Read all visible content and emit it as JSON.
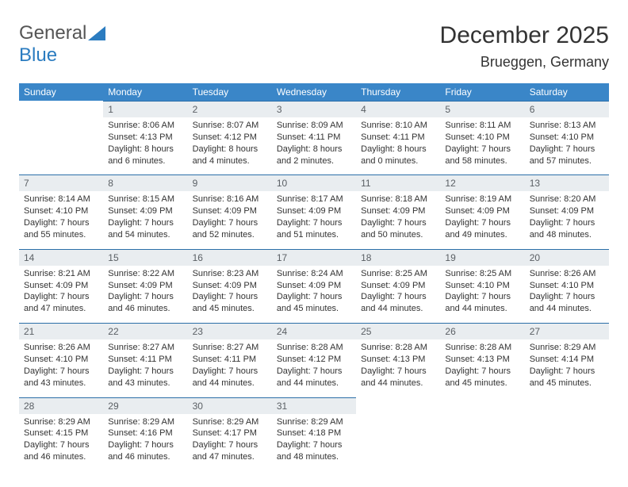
{
  "brand": {
    "text1": "General",
    "text2": "Blue"
  },
  "title": {
    "month": "December 2025",
    "location": "Brueggen, Germany"
  },
  "styling": {
    "header_bg": "#3a86c8",
    "header_fg": "#ffffff",
    "daynum_bg": "#e9edf0",
    "daynum_fg": "#5a5f64",
    "divider": "#2b6fa8",
    "body_font_size": 11,
    "header_font_size": 12,
    "month_font_size": 30,
    "location_font_size": 18
  },
  "weekdays": [
    "Sunday",
    "Monday",
    "Tuesday",
    "Wednesday",
    "Thursday",
    "Friday",
    "Saturday"
  ],
  "weeks": [
    [
      null,
      {
        "d": "1",
        "sr": "Sunrise: 8:06 AM",
        "ss": "Sunset: 4:13 PM",
        "dl1": "Daylight: 8 hours",
        "dl2": "and 6 minutes."
      },
      {
        "d": "2",
        "sr": "Sunrise: 8:07 AM",
        "ss": "Sunset: 4:12 PM",
        "dl1": "Daylight: 8 hours",
        "dl2": "and 4 minutes."
      },
      {
        "d": "3",
        "sr": "Sunrise: 8:09 AM",
        "ss": "Sunset: 4:11 PM",
        "dl1": "Daylight: 8 hours",
        "dl2": "and 2 minutes."
      },
      {
        "d": "4",
        "sr": "Sunrise: 8:10 AM",
        "ss": "Sunset: 4:11 PM",
        "dl1": "Daylight: 8 hours",
        "dl2": "and 0 minutes."
      },
      {
        "d": "5",
        "sr": "Sunrise: 8:11 AM",
        "ss": "Sunset: 4:10 PM",
        "dl1": "Daylight: 7 hours",
        "dl2": "and 58 minutes."
      },
      {
        "d": "6",
        "sr": "Sunrise: 8:13 AM",
        "ss": "Sunset: 4:10 PM",
        "dl1": "Daylight: 7 hours",
        "dl2": "and 57 minutes."
      }
    ],
    [
      {
        "d": "7",
        "sr": "Sunrise: 8:14 AM",
        "ss": "Sunset: 4:10 PM",
        "dl1": "Daylight: 7 hours",
        "dl2": "and 55 minutes."
      },
      {
        "d": "8",
        "sr": "Sunrise: 8:15 AM",
        "ss": "Sunset: 4:09 PM",
        "dl1": "Daylight: 7 hours",
        "dl2": "and 54 minutes."
      },
      {
        "d": "9",
        "sr": "Sunrise: 8:16 AM",
        "ss": "Sunset: 4:09 PM",
        "dl1": "Daylight: 7 hours",
        "dl2": "and 52 minutes."
      },
      {
        "d": "10",
        "sr": "Sunrise: 8:17 AM",
        "ss": "Sunset: 4:09 PM",
        "dl1": "Daylight: 7 hours",
        "dl2": "and 51 minutes."
      },
      {
        "d": "11",
        "sr": "Sunrise: 8:18 AM",
        "ss": "Sunset: 4:09 PM",
        "dl1": "Daylight: 7 hours",
        "dl2": "and 50 minutes."
      },
      {
        "d": "12",
        "sr": "Sunrise: 8:19 AM",
        "ss": "Sunset: 4:09 PM",
        "dl1": "Daylight: 7 hours",
        "dl2": "and 49 minutes."
      },
      {
        "d": "13",
        "sr": "Sunrise: 8:20 AM",
        "ss": "Sunset: 4:09 PM",
        "dl1": "Daylight: 7 hours",
        "dl2": "and 48 minutes."
      }
    ],
    [
      {
        "d": "14",
        "sr": "Sunrise: 8:21 AM",
        "ss": "Sunset: 4:09 PM",
        "dl1": "Daylight: 7 hours",
        "dl2": "and 47 minutes."
      },
      {
        "d": "15",
        "sr": "Sunrise: 8:22 AM",
        "ss": "Sunset: 4:09 PM",
        "dl1": "Daylight: 7 hours",
        "dl2": "and 46 minutes."
      },
      {
        "d": "16",
        "sr": "Sunrise: 8:23 AM",
        "ss": "Sunset: 4:09 PM",
        "dl1": "Daylight: 7 hours",
        "dl2": "and 45 minutes."
      },
      {
        "d": "17",
        "sr": "Sunrise: 8:24 AM",
        "ss": "Sunset: 4:09 PM",
        "dl1": "Daylight: 7 hours",
        "dl2": "and 45 minutes."
      },
      {
        "d": "18",
        "sr": "Sunrise: 8:25 AM",
        "ss": "Sunset: 4:09 PM",
        "dl1": "Daylight: 7 hours",
        "dl2": "and 44 minutes."
      },
      {
        "d": "19",
        "sr": "Sunrise: 8:25 AM",
        "ss": "Sunset: 4:10 PM",
        "dl1": "Daylight: 7 hours",
        "dl2": "and 44 minutes."
      },
      {
        "d": "20",
        "sr": "Sunrise: 8:26 AM",
        "ss": "Sunset: 4:10 PM",
        "dl1": "Daylight: 7 hours",
        "dl2": "and 44 minutes."
      }
    ],
    [
      {
        "d": "21",
        "sr": "Sunrise: 8:26 AM",
        "ss": "Sunset: 4:10 PM",
        "dl1": "Daylight: 7 hours",
        "dl2": "and 43 minutes."
      },
      {
        "d": "22",
        "sr": "Sunrise: 8:27 AM",
        "ss": "Sunset: 4:11 PM",
        "dl1": "Daylight: 7 hours",
        "dl2": "and 43 minutes."
      },
      {
        "d": "23",
        "sr": "Sunrise: 8:27 AM",
        "ss": "Sunset: 4:11 PM",
        "dl1": "Daylight: 7 hours",
        "dl2": "and 44 minutes."
      },
      {
        "d": "24",
        "sr": "Sunrise: 8:28 AM",
        "ss": "Sunset: 4:12 PM",
        "dl1": "Daylight: 7 hours",
        "dl2": "and 44 minutes."
      },
      {
        "d": "25",
        "sr": "Sunrise: 8:28 AM",
        "ss": "Sunset: 4:13 PM",
        "dl1": "Daylight: 7 hours",
        "dl2": "and 44 minutes."
      },
      {
        "d": "26",
        "sr": "Sunrise: 8:28 AM",
        "ss": "Sunset: 4:13 PM",
        "dl1": "Daylight: 7 hours",
        "dl2": "and 45 minutes."
      },
      {
        "d": "27",
        "sr": "Sunrise: 8:29 AM",
        "ss": "Sunset: 4:14 PM",
        "dl1": "Daylight: 7 hours",
        "dl2": "and 45 minutes."
      }
    ],
    [
      {
        "d": "28",
        "sr": "Sunrise: 8:29 AM",
        "ss": "Sunset: 4:15 PM",
        "dl1": "Daylight: 7 hours",
        "dl2": "and 46 minutes."
      },
      {
        "d": "29",
        "sr": "Sunrise: 8:29 AM",
        "ss": "Sunset: 4:16 PM",
        "dl1": "Daylight: 7 hours",
        "dl2": "and 46 minutes."
      },
      {
        "d": "30",
        "sr": "Sunrise: 8:29 AM",
        "ss": "Sunset: 4:17 PM",
        "dl1": "Daylight: 7 hours",
        "dl2": "and 47 minutes."
      },
      {
        "d": "31",
        "sr": "Sunrise: 8:29 AM",
        "ss": "Sunset: 4:18 PM",
        "dl1": "Daylight: 7 hours",
        "dl2": "and 48 minutes."
      },
      null,
      null,
      null
    ]
  ]
}
